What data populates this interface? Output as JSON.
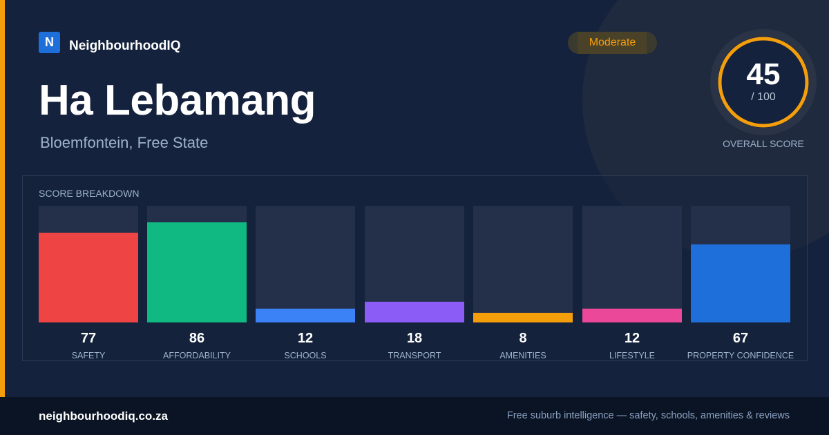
{
  "brand": {
    "logo_letter": "N",
    "name": "NeighbourhoodIQ"
  },
  "suburb": {
    "name": "Ha Lebamang",
    "location": "Bloemfontein, Free State"
  },
  "rating": {
    "label": "Moderate",
    "color": "#f59e0b"
  },
  "overall": {
    "score": "45",
    "max": "/ 100",
    "caption": "OVERALL SCORE",
    "fraction": 0.45
  },
  "breakdown": {
    "title": "SCORE BREAKDOWN",
    "items": [
      {
        "label": "SAFETY",
        "value": "77",
        "color": "#ef4444"
      },
      {
        "label": "AFFORDABILITY",
        "value": "86",
        "color": "#10b981"
      },
      {
        "label": "SCHOOLS",
        "value": "12",
        "color": "#3b82f6"
      },
      {
        "label": "TRANSPORT",
        "value": "18",
        "color": "#8b5cf6"
      },
      {
        "label": "AMENITIES",
        "value": "8",
        "color": "#f59e0b"
      },
      {
        "label": "LIFESTYLE",
        "value": "12",
        "color": "#ec4899"
      },
      {
        "label": "PROPERTY CONFIDENCE",
        "value": "67",
        "color": "#1f6fdb"
      }
    ]
  },
  "footer": {
    "domain": "neighbourhoodiq.co.za",
    "tagline": "Free suburb intelligence — safety, schools, amenities & reviews"
  }
}
